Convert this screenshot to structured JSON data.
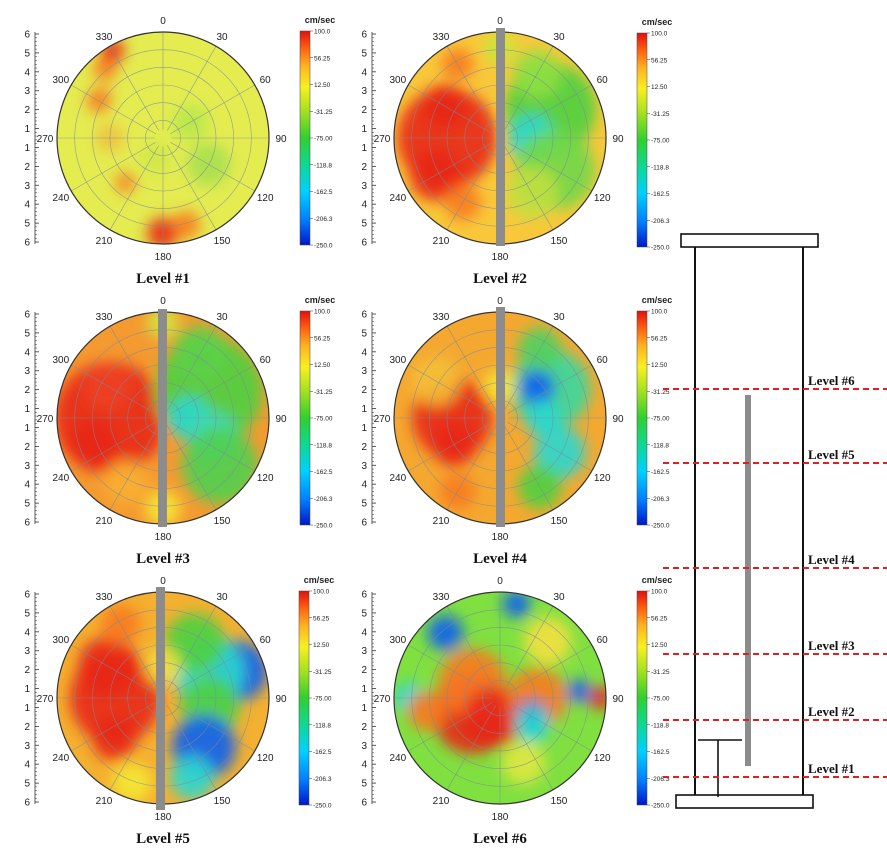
{
  "colorbar": {
    "unit": "cm/sec",
    "ticks": [
      "100.0",
      "56.25",
      "12.50",
      "-31.25",
      "-75.00",
      "-118.8",
      "-162.5",
      "-206.3",
      "-250.0"
    ],
    "range": [
      -250,
      100
    ],
    "colors": [
      "#0018c8",
      "#0080ff",
      "#00d0ff",
      "#10d890",
      "#30d030",
      "#a0e020",
      "#f8f020",
      "#ffb020",
      "#ff6010",
      "#e01010"
    ]
  },
  "polar": {
    "angle_labels": [
      "0",
      "30",
      "60",
      "90",
      "120",
      "150",
      "180",
      "210",
      "240",
      "270",
      "300",
      "330"
    ],
    "radial_ticks": [
      "6",
      "5",
      "4",
      "3",
      "2",
      "1",
      "1",
      "2",
      "3",
      "4",
      "5",
      "6"
    ]
  },
  "chart_data": [
    {
      "type": "heatmap",
      "title": "Level #1",
      "field_range_cm_per_sec": [
        -250,
        100
      ],
      "gray_bar": false
    },
    {
      "type": "heatmap",
      "title": "Level #2",
      "field_range_cm_per_sec": [
        -250,
        100
      ],
      "gray_bar": true
    },
    {
      "type": "heatmap",
      "title": "Level #3",
      "field_range_cm_per_sec": [
        -250,
        100
      ],
      "gray_bar": true
    },
    {
      "type": "heatmap",
      "title": "Level #4",
      "field_range_cm_per_sec": [
        -250,
        100
      ],
      "gray_bar": true
    },
    {
      "type": "heatmap",
      "title": "Level #5",
      "field_range_cm_per_sec": [
        -250,
        100
      ],
      "gray_bar": true
    },
    {
      "type": "heatmap",
      "title": "Level #6",
      "field_range_cm_per_sec": [
        -250,
        100
      ],
      "gray_bar": false
    }
  ],
  "schematic": {
    "level_labels": [
      "Level #6",
      "Level #5",
      "Level #4",
      "Level #3",
      "Level #2",
      "Level #1"
    ],
    "line_color": "#e02020"
  }
}
